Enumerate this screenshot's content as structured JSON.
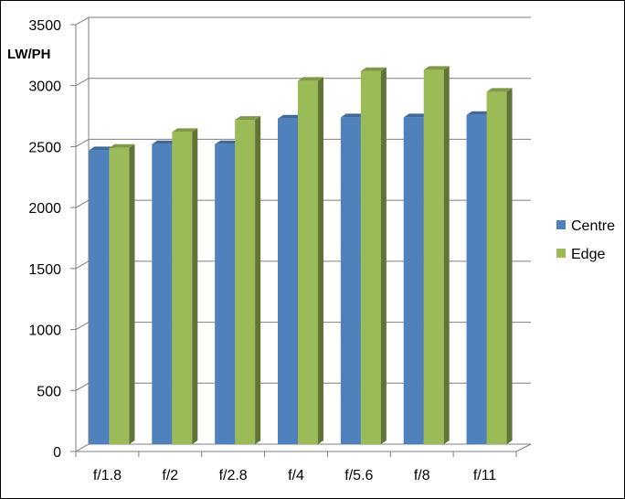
{
  "chart_data": {
    "type": "bar",
    "ylabel": "LW/PH",
    "categories": [
      "f/1.8",
      "f/2",
      "f/2.8",
      "f/4",
      "f/5.6",
      "f/8",
      "f/11"
    ],
    "series": [
      {
        "name": "Centre",
        "color": "#4f81bd",
        "values": [
          2410,
          2460,
          2460,
          2670,
          2680,
          2680,
          2700
        ]
      },
      {
        "name": "Edge",
        "color": "#9bbb59",
        "values": [
          2430,
          2560,
          2660,
          2980,
          3060,
          3070,
          2890
        ]
      }
    ],
    "ylim": [
      0,
      3500
    ],
    "yticks": [
      "0",
      "500",
      "1000",
      "1500",
      "2000",
      "2500",
      "3000",
      "3500"
    ],
    "grid": true,
    "legend_position": "right",
    "style": "3d-clustered-column"
  }
}
